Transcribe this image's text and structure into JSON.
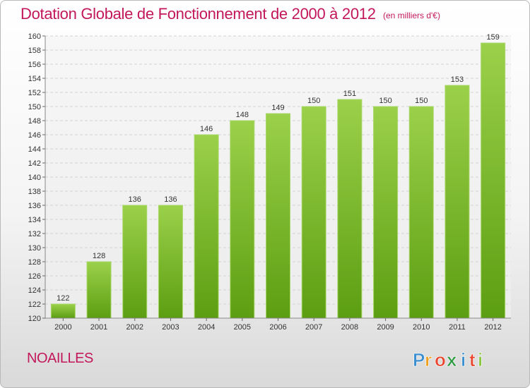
{
  "chart_data": {
    "type": "bar",
    "title": "Dotation Globale de Fonctionnement de 2000 à 2012",
    "unit_label": "(en milliers d'€)",
    "categories": [
      "2000",
      "2001",
      "2002",
      "2003",
      "2004",
      "2005",
      "2006",
      "2007",
      "2008",
      "2009",
      "2010",
      "2011",
      "2012"
    ],
    "values": [
      122,
      128,
      136,
      136,
      146,
      148,
      149,
      150,
      151,
      150,
      150,
      153,
      159
    ],
    "ylim": [
      120,
      160
    ],
    "ytick_step": 2,
    "xlabel": "",
    "ylabel": "",
    "grid": true,
    "bar_color": "#80c02e"
  },
  "footer": {
    "commune": "NOAILLES",
    "brand": {
      "letters": [
        "P",
        "r",
        "o",
        "x",
        "i",
        "t",
        "i"
      ],
      "colors": [
        "#3b8fd0",
        "#f0a020",
        "#e8452c",
        "#2f9a44",
        "#3b8fd0",
        "#e8452c",
        "#8bc63f"
      ]
    }
  }
}
